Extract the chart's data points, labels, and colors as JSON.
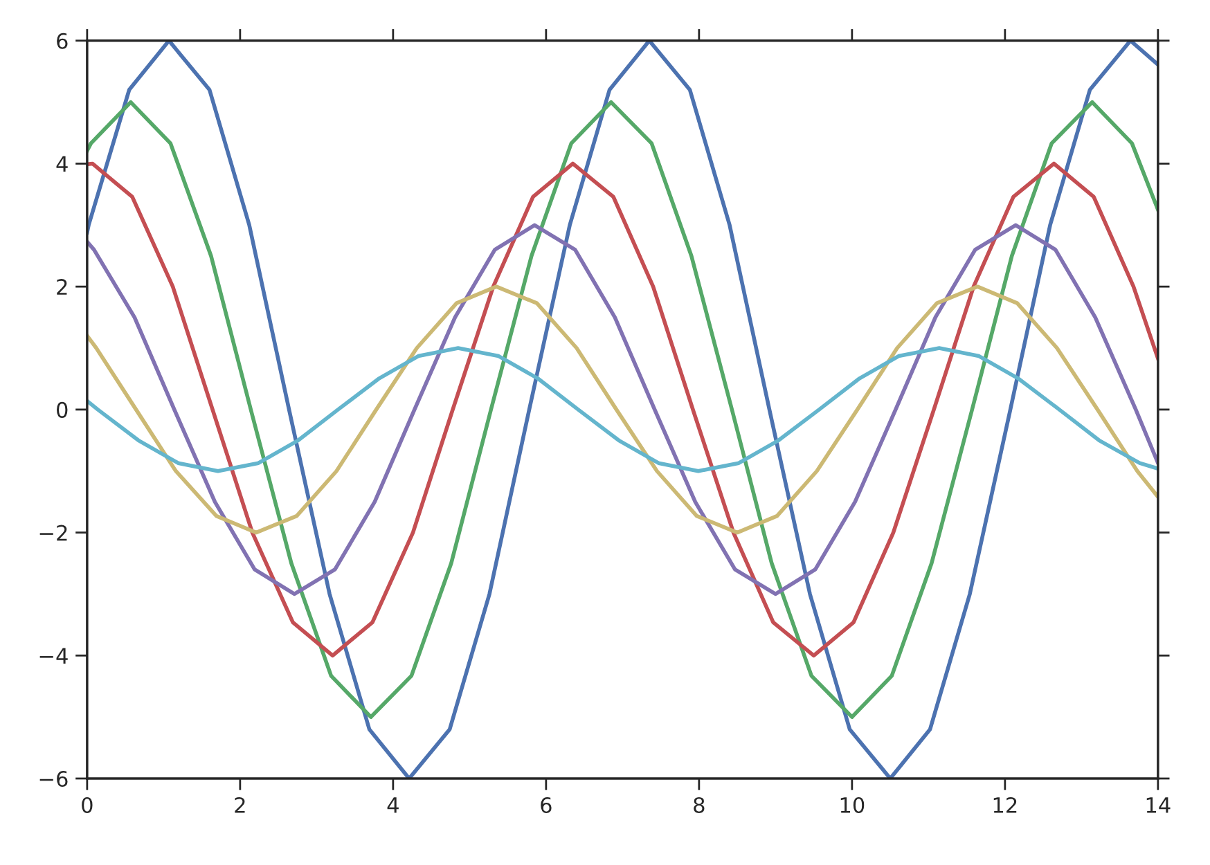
{
  "chart_data": {
    "type": "line",
    "xlim": [
      0,
      14
    ],
    "ylim": [
      -6,
      6
    ],
    "xticks": [
      0,
      2,
      4,
      6,
      8,
      10,
      12,
      14
    ],
    "yticks": [
      {
        "value": -6,
        "label": "−6"
      },
      {
        "value": -4,
        "label": "−4"
      },
      {
        "value": -2,
        "label": "−2"
      },
      0,
      2,
      4,
      6
    ],
    "grid": false,
    "marker": "none",
    "line_style": "solid",
    "series": [
      {
        "color": "#4c72b0",
        "x": [
          0,
          0.02,
          0.55,
          1.07,
          1.6,
          2.12,
          2.64,
          3.17,
          3.69,
          4.21,
          4.74,
          5.26,
          5.78,
          6.31,
          6.83,
          7.35,
          7.88,
          8.4,
          8.92,
          9.45,
          9.97,
          10.5,
          11.02,
          11.54,
          12.07,
          12.59,
          13.11,
          13.64,
          14
        ],
        "values": [
          2.88,
          3,
          5.2,
          6,
          5.2,
          3,
          0,
          -3,
          -5.2,
          -6,
          -5.2,
          -3,
          0,
          3,
          5.2,
          6,
          5.2,
          3,
          0,
          -3,
          -5.2,
          -6,
          -5.2,
          -3,
          0,
          3,
          5.2,
          6,
          5.61
        ]
      },
      {
        "color": "#55a868",
        "x": [
          0,
          0.05,
          0.57,
          1.09,
          1.62,
          2.14,
          2.67,
          3.19,
          3.71,
          4.24,
          4.76,
          5.28,
          5.81,
          6.33,
          6.85,
          7.38,
          7.9,
          8.43,
          8.95,
          9.47,
          10.0,
          10.52,
          11.04,
          11.57,
          12.09,
          12.61,
          13.14,
          13.66,
          14
        ],
        "values": [
          4.21,
          4.33,
          5,
          4.33,
          2.5,
          0,
          -2.5,
          -4.33,
          -5,
          -4.33,
          -2.5,
          0,
          2.5,
          4.33,
          5,
          4.33,
          2.5,
          0,
          -2.5,
          -4.33,
          -5,
          -4.33,
          -2.5,
          0,
          2.5,
          4.33,
          5,
          4.33,
          3.25
        ]
      },
      {
        "color": "#c44e52",
        "x": [
          0,
          0.07,
          0.59,
          1.12,
          1.64,
          2.16,
          2.69,
          3.21,
          3.73,
          4.26,
          4.78,
          5.31,
          5.83,
          6.35,
          6.88,
          7.4,
          7.92,
          8.45,
          8.97,
          9.5,
          10.02,
          10.54,
          11.07,
          11.59,
          12.11,
          12.64,
          13.16,
          13.68,
          14
        ],
        "values": [
          3.99,
          4,
          3.46,
          2,
          0,
          -2,
          -3.46,
          -4,
          -3.46,
          -2,
          0,
          2,
          3.46,
          4,
          3.46,
          2,
          0,
          -2,
          -3.46,
          -4,
          -3.46,
          -2,
          0,
          2,
          3.46,
          4,
          3.46,
          2,
          0.83
        ]
      },
      {
        "color": "#8172b2",
        "x": [
          0,
          0.09,
          0.62,
          1.14,
          1.67,
          2.19,
          2.71,
          3.24,
          3.76,
          4.28,
          4.81,
          5.33,
          5.85,
          6.38,
          6.9,
          7.42,
          7.95,
          8.47,
          9.0,
          9.52,
          10.04,
          10.57,
          11.09,
          11.61,
          12.14,
          12.66,
          13.18,
          13.71,
          14
        ],
        "values": [
          2.73,
          2.6,
          1.5,
          0,
          -1.5,
          -2.6,
          -3,
          -2.6,
          -1.5,
          0,
          1.5,
          2.6,
          3,
          2.6,
          1.5,
          0,
          -1.5,
          -2.6,
          -3,
          -2.6,
          -1.5,
          0,
          1.5,
          2.6,
          3,
          2.6,
          1.5,
          0,
          -0.87
        ]
      },
      {
        "color": "#ccb974",
        "x": [
          0,
          0.12,
          0.64,
          1.16,
          1.69,
          2.21,
          2.74,
          3.26,
          3.78,
          4.31,
          4.83,
          5.35,
          5.88,
          6.4,
          6.92,
          7.45,
          7.97,
          8.5,
          9.02,
          9.54,
          10.07,
          10.59,
          11.11,
          11.64,
          12.16,
          12.68,
          13.21,
          13.73,
          14
        ],
        "values": [
          1.2,
          1,
          0,
          -1,
          -1.73,
          -2,
          -1.73,
          -1,
          0,
          1,
          1.73,
          2,
          1.73,
          1,
          0,
          -1,
          -1.73,
          -2,
          -1.73,
          -1,
          0,
          1,
          1.73,
          2,
          1.73,
          1,
          0,
          -1,
          -1.42
        ]
      },
      {
        "color": "#64b5cd",
        "x": [
          0,
          0.14,
          0.67,
          1.19,
          1.71,
          2.24,
          2.76,
          3.28,
          3.81,
          4.33,
          4.85,
          5.38,
          5.9,
          6.42,
          6.95,
          7.47,
          7.99,
          8.52,
          9.04,
          9.57,
          10.09,
          10.61,
          11.14,
          11.66,
          12.18,
          12.71,
          13.23,
          13.76,
          14
        ],
        "values": [
          0.14,
          0,
          -0.5,
          -0.87,
          -1,
          -0.87,
          -0.5,
          0,
          0.5,
          0.87,
          1,
          0.87,
          0.5,
          0,
          -0.5,
          -0.87,
          -1,
          -0.87,
          -0.5,
          0,
          0.5,
          0.87,
          1,
          0.87,
          0.5,
          0,
          -0.5,
          -0.87,
          -0.96
        ]
      }
    ]
  }
}
